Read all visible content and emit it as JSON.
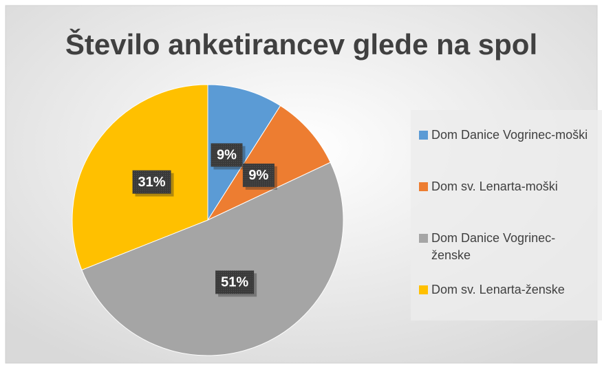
{
  "chart_data": {
    "type": "pie",
    "title": "Število anketirancev glede na spol",
    "categories": [
      "Dom Danice Vogrinec-moški",
      "Dom sv. Lenarta-moški",
      "Dom Danice Vogrinec-ženske",
      "Dom sv. Lenarta-ženske"
    ],
    "values": [
      9,
      9,
      51,
      31
    ],
    "value_labels": [
      "9%",
      "9%",
      "51%",
      "31%"
    ],
    "colors": [
      "#5b9bd5",
      "#ed7d31",
      "#a5a5a5",
      "#ffc000"
    ],
    "legend": "right"
  }
}
